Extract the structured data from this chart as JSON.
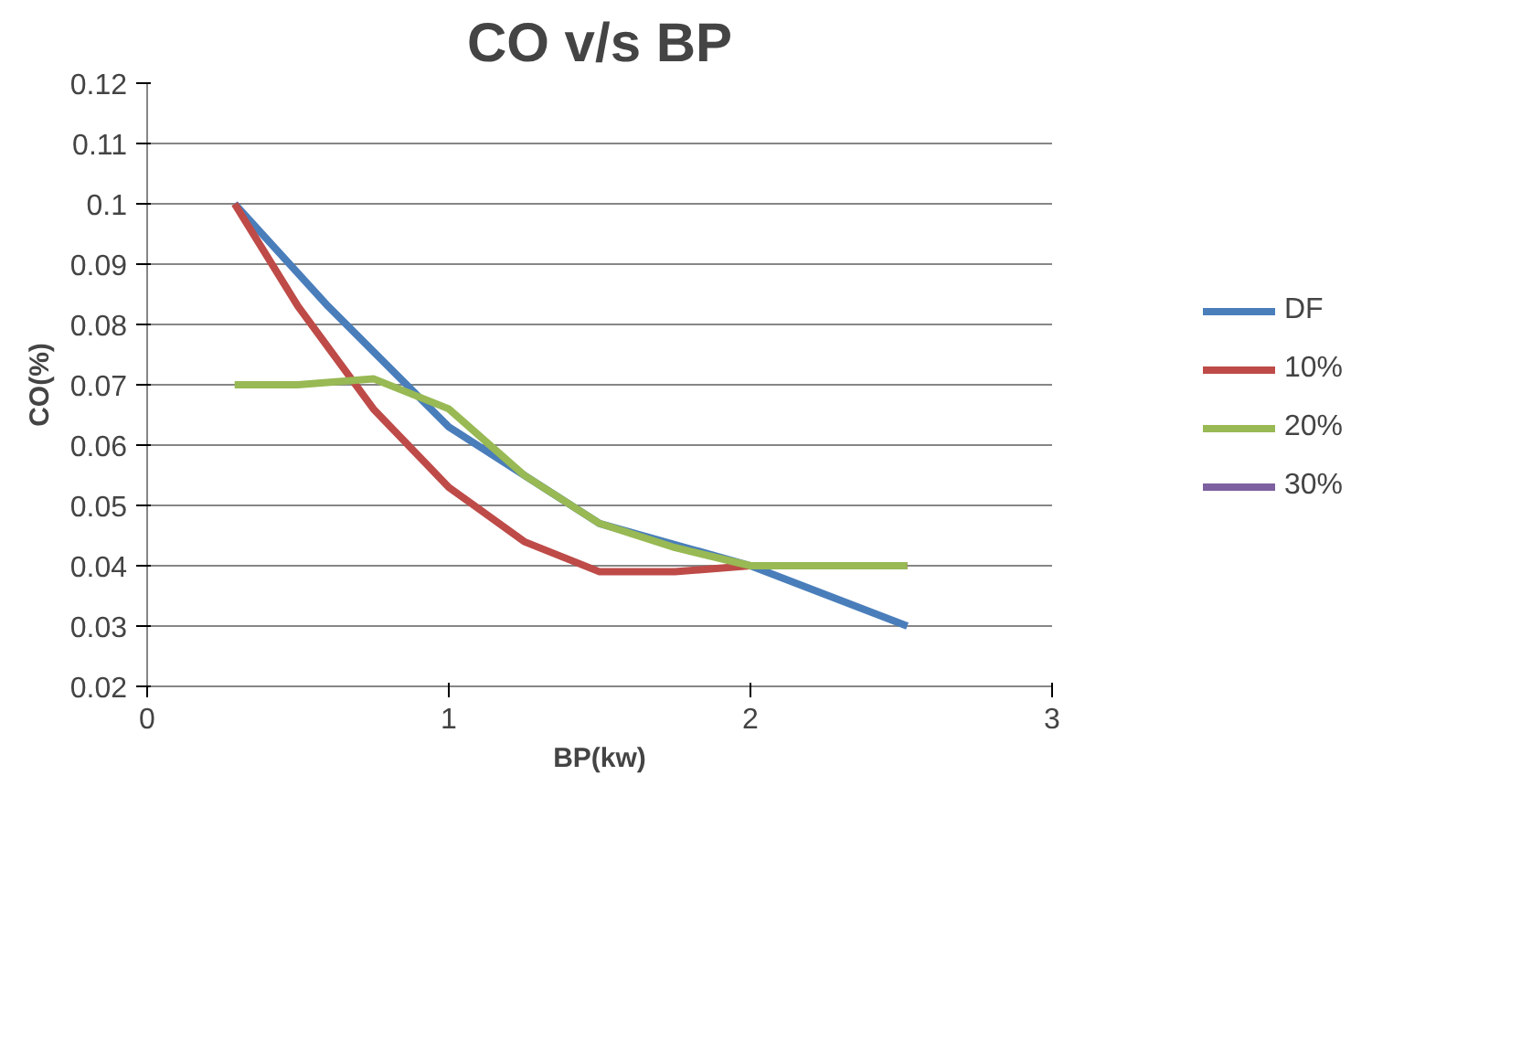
{
  "chart_data": {
    "type": "line",
    "title": "CO v/s BP",
    "xlabel": "BP(kw)",
    "ylabel": "CO(%)",
    "xlim": [
      0,
      3
    ],
    "xticks": [
      0,
      1,
      2,
      3
    ],
    "ylim": [
      0.02,
      0.12
    ],
    "yticks": [
      0.02,
      0.03,
      0.04,
      0.05,
      0.06,
      0.07,
      0.08,
      0.09,
      0.1,
      0.11,
      0.12
    ],
    "grid": "y",
    "legend": "right",
    "marker": "none",
    "line_style": "solid",
    "series": [
      {
        "name": "DF",
        "color": "#4a7ebb",
        "x": [
          0.29,
          0.6,
          1.0,
          1.5,
          2.0,
          2.52
        ],
        "values": [
          0.1,
          0.083,
          0.063,
          0.047,
          0.04,
          0.03
        ]
      },
      {
        "name": "10%",
        "color": "#be4b48",
        "x": [
          0.29,
          0.5,
          0.75,
          1.0,
          1.25,
          1.5,
          1.75,
          2.0,
          2.52
        ],
        "values": [
          0.1,
          0.083,
          0.066,
          0.053,
          0.044,
          0.039,
          0.039,
          0.04,
          0.04
        ]
      },
      {
        "name": "20%",
        "color": "#98b954",
        "x": [
          0.29,
          0.5,
          0.75,
          1.0,
          1.25,
          1.5,
          1.75,
          2.0,
          2.25,
          2.52
        ],
        "values": [
          0.07,
          0.07,
          0.071,
          0.066,
          0.055,
          0.047,
          0.043,
          0.04,
          0.04,
          0.04
        ]
      },
      {
        "name": "30%",
        "color": "#7d60a0"
      }
    ]
  }
}
